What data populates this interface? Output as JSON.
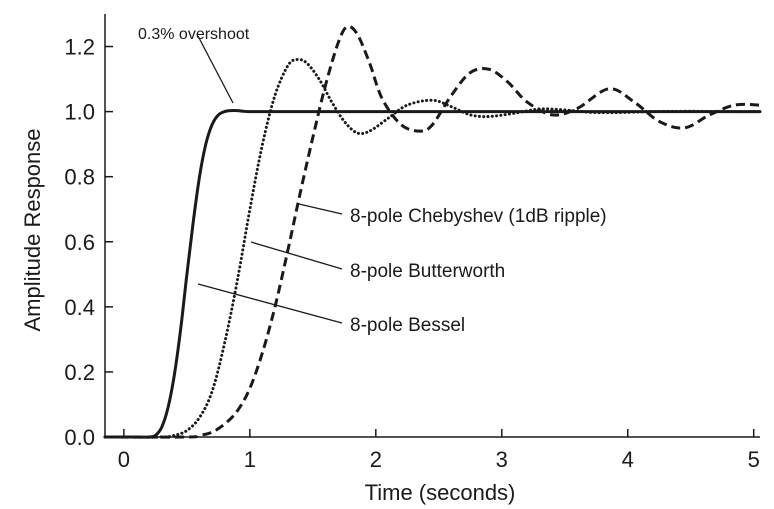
{
  "chart_data": {
    "type": "line",
    "xlabel": "Time (seconds)",
    "ylabel": "Amplitude Response",
    "xlim": [
      -0.15,
      5.05
    ],
    "ylim": [
      0.0,
      1.3
    ],
    "xticks": [
      0,
      1,
      2,
      3,
      4,
      5
    ],
    "yticks": [
      0.0,
      0.2,
      0.4,
      0.6,
      0.8,
      1.0,
      1.2
    ],
    "xtick_labels": [
      "0",
      "1",
      "2",
      "3",
      "4",
      "5"
    ],
    "ytick_labels": [
      "0.0",
      "0.2",
      "0.4",
      "0.6",
      "0.8",
      "1.0",
      "1.2"
    ],
    "grid": false,
    "series": [
      {
        "name": "8-pole Bessel",
        "style": "solid",
        "x": [
          -0.15,
          0.1,
          0.2,
          0.25,
          0.3,
          0.35,
          0.4,
          0.45,
          0.5,
          0.55,
          0.6,
          0.65,
          0.7,
          0.75,
          0.8,
          0.85,
          0.9,
          0.95,
          1.0,
          1.1,
          1.2,
          1.5,
          2.0,
          3.0,
          4.0,
          5.05
        ],
        "y": [
          0.0,
          0.0,
          0.0,
          0.005,
          0.03,
          0.09,
          0.19,
          0.33,
          0.5,
          0.66,
          0.8,
          0.9,
          0.96,
          0.99,
          1.0,
          1.003,
          1.003,
          1.001,
          1.0,
          1.0,
          1.0,
          1.0,
          1.0,
          1.0,
          1.0,
          1.0
        ]
      },
      {
        "name": "8-pole Butterworth",
        "style": "dotted",
        "x": [
          -0.15,
          0.3,
          0.4,
          0.5,
          0.6,
          0.7,
          0.8,
          0.9,
          1.0,
          1.1,
          1.2,
          1.3,
          1.37,
          1.45,
          1.55,
          1.65,
          1.75,
          1.85,
          1.95,
          2.1,
          2.25,
          2.45,
          2.6,
          2.75,
          2.9,
          3.1,
          3.3,
          3.5,
          3.7,
          3.9,
          4.2,
          4.5,
          4.8,
          5.05
        ],
        "y": [
          0.0,
          0.0,
          0.005,
          0.02,
          0.06,
          0.14,
          0.29,
          0.48,
          0.7,
          0.9,
          1.05,
          1.14,
          1.16,
          1.15,
          1.1,
          1.03,
          0.97,
          0.935,
          0.94,
          0.98,
          1.02,
          1.035,
          1.015,
          0.99,
          0.985,
          0.995,
          1.008,
          1.005,
          0.998,
          0.997,
          1.0,
          1.001,
          1.0,
          1.0
        ]
      },
      {
        "name": "8-pole Chebyshev (1dB ripple)",
        "style": "dashed",
        "x": [
          -0.15,
          0.5,
          0.6,
          0.7,
          0.8,
          0.9,
          1.0,
          1.1,
          1.2,
          1.3,
          1.4,
          1.5,
          1.6,
          1.7,
          1.77,
          1.85,
          1.95,
          2.05,
          2.2,
          2.35,
          2.45,
          2.6,
          2.75,
          2.9,
          3.05,
          3.2,
          3.4,
          3.6,
          3.85,
          4.05,
          4.25,
          4.45,
          4.65,
          4.85,
          5.05
        ],
        "y": [
          0.0,
          0.0,
          0.005,
          0.015,
          0.04,
          0.08,
          0.15,
          0.26,
          0.4,
          0.57,
          0.75,
          0.92,
          1.08,
          1.21,
          1.26,
          1.24,
          1.15,
          1.04,
          0.96,
          0.94,
          0.96,
          1.05,
          1.12,
          1.13,
          1.09,
          1.03,
          0.99,
          1.01,
          1.07,
          1.03,
          0.97,
          0.95,
          0.99,
          1.02,
          1.02
        ]
      }
    ],
    "annotations": [
      {
        "text": "0.3% overshoot",
        "target_series": "8-pole Bessel",
        "x": 0.85,
        "y": 1.003
      },
      {
        "text": "8-pole Chebyshev (1dB ripple)",
        "target_series": "8-pole Chebyshev (1dB ripple)",
        "x": 1.38,
        "y": 0.72
      },
      {
        "text": "8-pole Butterworth",
        "target_series": "8-pole Butterworth",
        "x": 0.97,
        "y": 0.6
      },
      {
        "text": "8-pole Bessel",
        "target_series": "8-pole Bessel",
        "x": 0.58,
        "y": 0.47
      }
    ]
  }
}
